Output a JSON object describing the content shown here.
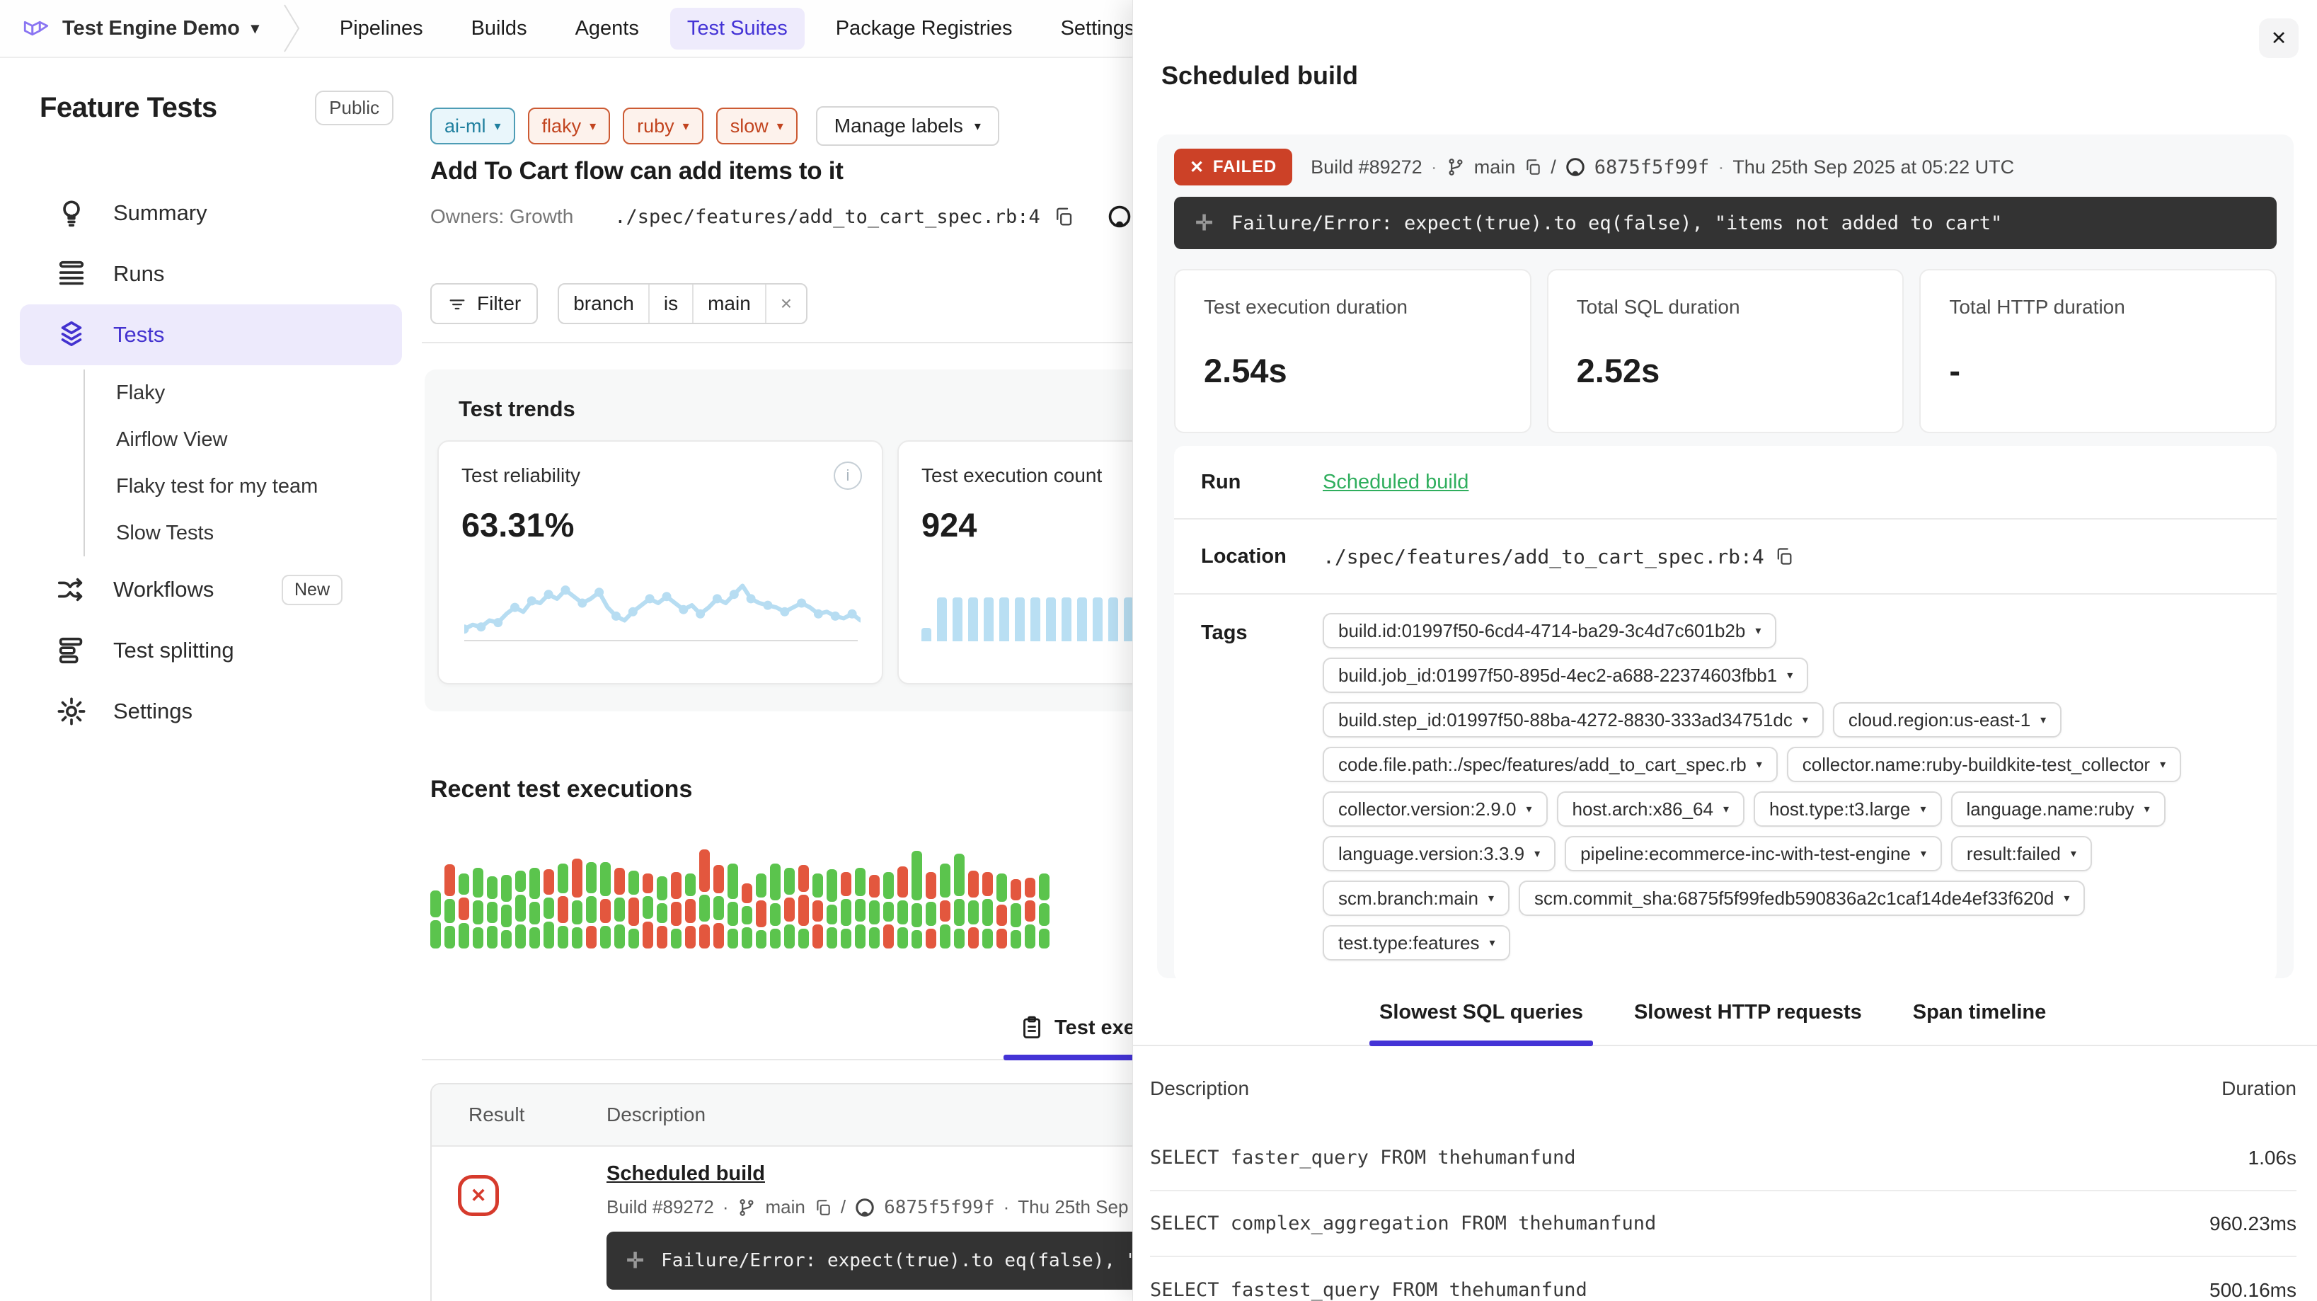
{
  "nav": {
    "org": "Test Engine Demo",
    "items": [
      {
        "label": "Pipelines",
        "active": false
      },
      {
        "label": "Builds",
        "active": false
      },
      {
        "label": "Agents",
        "active": false
      },
      {
        "label": "Test Suites",
        "active": true
      },
      {
        "label": "Package Registries",
        "active": false
      },
      {
        "label": "Settings",
        "active": false
      }
    ]
  },
  "sidebar": {
    "suite_name": "Feature Tests",
    "visibility_badge": "Public",
    "items_top": [
      {
        "label": "Summary",
        "icon": "lightbulb-icon",
        "active": false
      },
      {
        "label": "Runs",
        "icon": "list-icon",
        "active": false
      },
      {
        "label": "Tests",
        "icon": "layers-icon",
        "active": true
      }
    ],
    "sub_items": [
      "Flaky",
      "Airflow View",
      "Flaky test for my team",
      "Slow Tests"
    ],
    "items_bottom": [
      {
        "label": "Workflows",
        "icon": "shuffle-icon",
        "badge": "New"
      },
      {
        "label": "Test splitting",
        "icon": "split-icon",
        "badge": ""
      },
      {
        "label": "Settings",
        "icon": "gear-icon",
        "badge": ""
      }
    ]
  },
  "build": {
    "number": "Build #89272",
    "branch": "main",
    "commit_short": "6875f5f99f",
    "timestamp": "Thu 25th Sep 2025 at 05:22 UTC",
    "separator": "·",
    "slash": "/"
  },
  "main": {
    "labels": [
      {
        "label": "ai-ml",
        "color": "teal"
      },
      {
        "label": "flaky",
        "color": "red"
      },
      {
        "label": "ruby",
        "color": "red"
      },
      {
        "label": "slow",
        "color": "red"
      }
    ],
    "manage_labels": "Manage labels",
    "title": "Add To Cart flow can add items to it",
    "owners": "Owners: Growth",
    "location_path": "./spec/features/add_to_cart_spec.rb:4",
    "repo_link": "github",
    "filter_button": "Filter",
    "filter_chip": {
      "field": "branch",
      "operator": "is",
      "value": "main",
      "remove": "×"
    },
    "trends_heading": "Test trends",
    "recent_heading": "Recent test executions",
    "executions_tab": "Test executions",
    "results_table": {
      "columns": [
        "Result",
        "Description"
      ],
      "row": {
        "title": "Scheduled build",
        "error": "Failure/Error: expect(true).to eq(false), \"items not added to cart\""
      }
    }
  },
  "panel": {
    "title": "Scheduled build",
    "status_badge": "FAILED",
    "error_message": "Failure/Error: expect(true).to eq(false), \"items not added to cart\"",
    "metrics": [
      {
        "label": "Test execution duration",
        "value": "2.54s"
      },
      {
        "label": "Total SQL duration",
        "value": "2.52s"
      },
      {
        "label": "Total HTTP duration",
        "value": "-"
      }
    ],
    "details": {
      "run_label": "Run",
      "run_value": "Scheduled build",
      "location_label": "Location",
      "location_value": "./spec/features/add_to_cart_spec.rb:4",
      "tags_label": "Tags",
      "tags": [
        "build.id:01997f50-6cd4-4714-ba29-3c4d7c601b2b",
        "build.job_id:01997f50-895d-4ec2-a688-22374603fbb1",
        "build.step_id:01997f50-88ba-4272-8830-333ad34751dc",
        "cloud.region:us-east-1",
        "code.file.path:./spec/features/add_to_cart_spec.rb",
        "collector.name:ruby-buildkite-test_collector",
        "collector.version:2.9.0",
        "host.arch:x86_64",
        "host.type:t3.large",
        "language.name:ruby",
        "language.version:3.3.9",
        "pipeline:ecommerce-inc-with-test-engine",
        "result:failed",
        "scm.branch:main",
        "scm.commit_sha:6875f5f99fedb590836a2c1caf14de4ef33f620d",
        "test.type:features"
      ]
    },
    "tabs": [
      {
        "label": "Slowest SQL queries",
        "active": true
      },
      {
        "label": "Slowest HTTP requests",
        "active": false
      },
      {
        "label": "Span timeline",
        "active": false
      }
    ],
    "sql_table": {
      "columns": [
        "Description",
        "Duration"
      ],
      "rows": [
        {
          "description": "SELECT faster_query FROM thehumanfund",
          "duration": "1.06s"
        },
        {
          "description": "SELECT complex_aggregation FROM thehumanfund",
          "duration": "960.23ms"
        },
        {
          "description": "SELECT fastest_query FROM thehumanfund",
          "duration": "500.16ms"
        }
      ]
    }
  },
  "chart_data": [
    {
      "id": "test-reliability-sparkline",
      "type": "line",
      "title": "Test reliability",
      "value_label": "63.31%",
      "color": "#b7ddf2",
      "ylim": [
        0,
        100
      ],
      "values": [
        48,
        50,
        49,
        52,
        51,
        55,
        58,
        56,
        61,
        60,
        64,
        62,
        66,
        63,
        60,
        62,
        65,
        58,
        54,
        52,
        56,
        59,
        62,
        60,
        63,
        60,
        57,
        59,
        55,
        58,
        62,
        60,
        64,
        68,
        62,
        60,
        59,
        58,
        56,
        58,
        60,
        58,
        55,
        56,
        54,
        53,
        55,
        52
      ]
    },
    {
      "id": "test-execution-count-bars",
      "type": "bar",
      "title": "Test execution count",
      "value_label": "924",
      "color": "#b9dff3",
      "ylim": [
        0,
        100
      ],
      "values": [
        30,
        100,
        100,
        100,
        100,
        100,
        100,
        100,
        100,
        100,
        100,
        100,
        100,
        100,
        100,
        100,
        100,
        100,
        100
      ]
    },
    {
      "id": "recent-test-executions",
      "type": "stacked-bar",
      "title": "Recent test executions",
      "colors": {
        "g": "#5bc44d",
        "r": "#e3573e"
      },
      "columns": [
        [
          [
            "g",
            38
          ],
          [
            "g",
            40
          ]
        ],
        [
          [
            "r",
            45
          ],
          [
            "g",
            34
          ],
          [
            "g",
            32
          ]
        ],
        [
          [
            "g",
            30
          ],
          [
            "r",
            32
          ],
          [
            "g",
            36
          ]
        ],
        [
          [
            "g",
            42
          ],
          [
            "g",
            34
          ],
          [
            "g",
            30
          ]
        ],
        [
          [
            "g",
            32
          ],
          [
            "g",
            30
          ],
          [
            "g",
            32
          ]
        ],
        [
          [
            "g",
            38
          ],
          [
            "g",
            32
          ],
          [
            "g",
            26
          ]
        ],
        [
          [
            "g",
            30
          ],
          [
            "g",
            38
          ],
          [
            "g",
            34
          ]
        ],
        [
          [
            "g",
            44
          ],
          [
            "g",
            32
          ],
          [
            "g",
            30
          ]
        ],
        [
          [
            "r",
            36
          ],
          [
            "g",
            30
          ],
          [
            "g",
            38
          ]
        ],
        [
          [
            "g",
            42
          ],
          [
            "r",
            38
          ],
          [
            "g",
            32
          ]
        ],
        [
          [
            "r",
            55
          ],
          [
            "g",
            34
          ],
          [
            "g",
            30
          ]
        ],
        [
          [
            "g",
            44
          ],
          [
            "g",
            38
          ],
          [
            "r",
            32
          ]
        ],
        [
          [
            "g",
            48
          ],
          [
            "r",
            34
          ],
          [
            "g",
            32
          ]
        ],
        [
          [
            "r",
            38
          ],
          [
            "g",
            34
          ],
          [
            "g",
            34
          ]
        ],
        [
          [
            "g",
            34
          ],
          [
            "r",
            40
          ],
          [
            "g",
            28
          ]
        ],
        [
          [
            "r",
            28
          ],
          [
            "g",
            32
          ],
          [
            "r",
            38
          ]
        ],
        [
          [
            "g",
            34
          ],
          [
            "g",
            28
          ],
          [
            "r",
            32
          ]
        ],
        [
          [
            "r",
            38
          ],
          [
            "r",
            34
          ],
          [
            "g",
            28
          ]
        ],
        [
          [
            "g",
            32
          ],
          [
            "r",
            34
          ],
          [
            "r",
            32
          ]
        ],
        [
          [
            "r",
            60
          ],
          [
            "g",
            38
          ],
          [
            "r",
            34
          ]
        ],
        [
          [
            "r",
            40
          ],
          [
            "g",
            34
          ],
          [
            "r",
            36
          ]
        ],
        [
          [
            "g",
            50
          ],
          [
            "g",
            34
          ],
          [
            "g",
            28
          ]
        ],
        [
          [
            "r",
            28
          ],
          [
            "g",
            26
          ],
          [
            "g",
            30
          ]
        ],
        [
          [
            "g",
            34
          ],
          [
            "r",
            38
          ],
          [
            "g",
            26
          ]
        ],
        [
          [
            "g",
            52
          ],
          [
            "g",
            32
          ],
          [
            "g",
            28
          ]
        ],
        [
          [
            "g",
            38
          ],
          [
            "r",
            34
          ],
          [
            "g",
            34
          ]
        ],
        [
          [
            "r",
            38
          ],
          [
            "r",
            44
          ],
          [
            "g",
            28
          ]
        ],
        [
          [
            "g",
            34
          ],
          [
            "r",
            30
          ],
          [
            "r",
            34
          ]
        ],
        [
          [
            "g",
            46
          ],
          [
            "g",
            28
          ],
          [
            "g",
            30
          ]
        ],
        [
          [
            "r",
            34
          ],
          [
            "g",
            38
          ],
          [
            "g",
            28
          ]
        ],
        [
          [
            "g",
            40
          ],
          [
            "g",
            32
          ],
          [
            "g",
            34
          ]
        ],
        [
          [
            "r",
            32
          ],
          [
            "g",
            34
          ],
          [
            "g",
            30
          ]
        ],
        [
          [
            "g",
            38
          ],
          [
            "g",
            28
          ],
          [
            "r",
            34
          ]
        ],
        [
          [
            "r",
            44
          ],
          [
            "g",
            34
          ],
          [
            "g",
            30
          ]
        ],
        [
          [
            "g",
            70
          ],
          [
            "g",
            34
          ],
          [
            "g",
            26
          ]
        ],
        [
          [
            "r",
            38
          ],
          [
            "g",
            34
          ],
          [
            "r",
            28
          ]
        ],
        [
          [
            "g",
            48
          ],
          [
            "r",
            30
          ],
          [
            "g",
            34
          ]
        ],
        [
          [
            "g",
            60
          ],
          [
            "g",
            38
          ],
          [
            "g",
            28
          ]
        ],
        [
          [
            "r",
            38
          ],
          [
            "g",
            34
          ],
          [
            "r",
            30
          ]
        ],
        [
          [
            "r",
            34
          ],
          [
            "g",
            38
          ],
          [
            "g",
            28
          ]
        ],
        [
          [
            "g",
            40
          ],
          [
            "r",
            30
          ],
          [
            "r",
            28
          ]
        ],
        [
          [
            "r",
            30
          ],
          [
            "g",
            34
          ],
          [
            "g",
            26
          ]
        ],
        [
          [
            "r",
            28
          ],
          [
            "r",
            30
          ],
          [
            "g",
            34
          ]
        ],
        [
          [
            "g",
            38
          ],
          [
            "g",
            32
          ],
          [
            "g",
            28
          ]
        ]
      ]
    }
  ]
}
